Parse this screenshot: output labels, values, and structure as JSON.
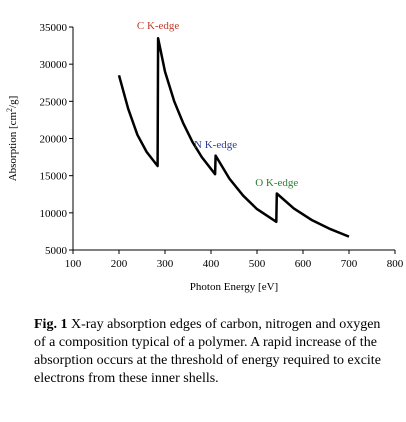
{
  "chart_data": {
    "type": "line",
    "xlabel": "Photon Energy [eV]",
    "ylabel_parts": {
      "prefix": "Absorption [cm",
      "sup": "2",
      "suffix": "/g]"
    },
    "xlim": [
      100,
      800
    ],
    "ylim": [
      5000,
      35000
    ],
    "xticks": [
      "100",
      "200",
      "300",
      "400",
      "500",
      "600",
      "700",
      "800"
    ],
    "yticks": [
      "5000",
      "10000",
      "15000",
      "20000",
      "25000",
      "30000",
      "35000"
    ],
    "grid": false,
    "series": [
      {
        "color": "#000000",
        "segments": [
          {
            "x": [
              200,
              220,
              240,
              260,
              284
            ],
            "y": [
              28500,
              24000,
              20500,
              18200,
              16300
            ]
          },
          {
            "x": [
              285,
              300,
              320,
              340,
              360,
              380,
              409
            ],
            "y": [
              33500,
              29000,
              25000,
              22000,
              19500,
              17500,
              15200
            ]
          },
          {
            "x": [
              410,
              440,
              470,
              500,
              542
            ],
            "y": [
              17700,
              14600,
              12300,
              10500,
              8800
            ]
          },
          {
            "x": [
              543,
              580,
              620,
              660,
              700
            ],
            "y": [
              12600,
              10600,
              9000,
              7800,
              6800
            ]
          }
        ]
      }
    ],
    "annotations": [
      {
        "text": "C K-edge",
        "x": 285,
        "y": 34700,
        "color": "#c0392b"
      },
      {
        "text": "N K-edge",
        "x": 410,
        "y": 18700,
        "color": "#2c3e96"
      },
      {
        "text": "O K-edge",
        "x": 543,
        "y": 13600,
        "color": "#2e7d32"
      }
    ]
  },
  "caption": {
    "label": "Fig. 1",
    "text": " X-ray absorption edges of carbon, nitrogen and oxygen of a composition typical of a polymer. A rapid increase of the absorption occurs at the threshold of energy required to excite electrons from these inner shells."
  }
}
